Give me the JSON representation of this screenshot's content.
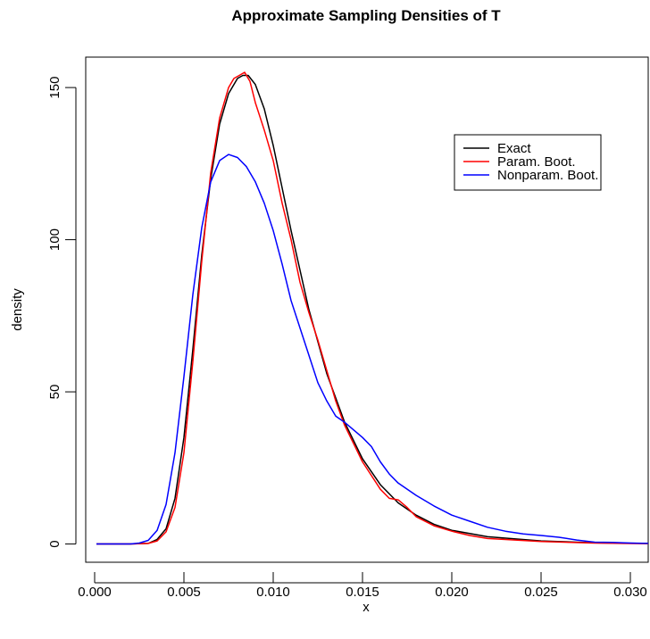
{
  "chart_data": {
    "type": "line",
    "title": "Approximate Sampling Densities of T",
    "xlabel": "x",
    "ylabel": "density",
    "xlim": [
      -0.0005,
      0.031
    ],
    "ylim": [
      -6,
      160
    ],
    "xticks": [
      0.0,
      0.005,
      0.01,
      0.015,
      0.02,
      0.025,
      0.03
    ],
    "xtick_labels": [
      "0.000",
      "0.005",
      "0.010",
      "0.015",
      "0.020",
      "0.025",
      "0.030"
    ],
    "yticks": [
      0,
      50,
      100,
      150
    ],
    "ytick_labels": [
      "0",
      "50",
      "100",
      "150"
    ],
    "grid": false,
    "legend_position": "top-right",
    "series": [
      {
        "name": "Exact",
        "color": "#000000",
        "x": [
          0.0001,
          0.002,
          0.003,
          0.0035,
          0.004,
          0.0045,
          0.005,
          0.0055,
          0.006,
          0.0065,
          0.007,
          0.0075,
          0.008,
          0.0083,
          0.0086,
          0.009,
          0.0095,
          0.01,
          0.011,
          0.012,
          0.013,
          0.014,
          0.015,
          0.016,
          0.017,
          0.018,
          0.019,
          0.02,
          0.022,
          0.025,
          0.028,
          0.031
        ],
        "y": [
          0,
          0,
          0.2,
          1.5,
          5,
          15,
          35,
          64,
          95,
          120,
          138,
          148,
          153,
          154,
          154,
          151,
          143,
          131,
          103,
          77,
          56,
          40,
          28,
          19.5,
          13.5,
          9.5,
          6.5,
          4.5,
          2.4,
          1.0,
          0.4,
          0.2
        ]
      },
      {
        "name": "Param. Boot.",
        "color": "#ff0000",
        "x": [
          0.0001,
          0.002,
          0.003,
          0.0035,
          0.004,
          0.0045,
          0.005,
          0.0055,
          0.006,
          0.0065,
          0.007,
          0.0075,
          0.0078,
          0.0081,
          0.0084,
          0.0087,
          0.009,
          0.0095,
          0.01,
          0.0105,
          0.011,
          0.0115,
          0.012,
          0.0125,
          0.013,
          0.0135,
          0.014,
          0.015,
          0.016,
          0.0165,
          0.017,
          0.0175,
          0.018,
          0.019,
          0.02,
          0.021,
          0.022,
          0.025,
          0.028,
          0.031
        ],
        "y": [
          0,
          0,
          0.2,
          1.0,
          4,
          12,
          30,
          60,
          93,
          122,
          140,
          150,
          153,
          154,
          155,
          152,
          145,
          136,
          126,
          112,
          100,
          86,
          76,
          67,
          57,
          47,
          39,
          27,
          18,
          15,
          14.5,
          12,
          9,
          6,
          4.2,
          2.8,
          1.8,
          0.8,
          0.3,
          0.1
        ]
      },
      {
        "name": "Nonparam. Boot.",
        "color": "#0000ff",
        "x": [
          0.0001,
          0.002,
          0.0025,
          0.003,
          0.0035,
          0.004,
          0.0045,
          0.005,
          0.0055,
          0.006,
          0.0065,
          0.007,
          0.0075,
          0.008,
          0.0085,
          0.009,
          0.0095,
          0.01,
          0.0105,
          0.011,
          0.0115,
          0.012,
          0.0125,
          0.013,
          0.0135,
          0.014,
          0.015,
          0.0155,
          0.016,
          0.0165,
          0.017,
          0.018,
          0.019,
          0.02,
          0.021,
          0.022,
          0.023,
          0.024,
          0.025,
          0.026,
          0.027,
          0.028,
          0.029,
          0.03,
          0.031
        ],
        "y": [
          0,
          0,
          0.3,
          1.2,
          4.5,
          13,
          30,
          55,
          82,
          104,
          119,
          126,
          128,
          127,
          124,
          119,
          112,
          103,
          92,
          80,
          71,
          62,
          53,
          47,
          42,
          40,
          35,
          32,
          27,
          23,
          20,
          16,
          12.5,
          9.5,
          7.5,
          5.5,
          4.2,
          3.3,
          2.8,
          2.2,
          1.3,
          0.6,
          0.5,
          0.3,
          0.2
        ]
      }
    ]
  }
}
